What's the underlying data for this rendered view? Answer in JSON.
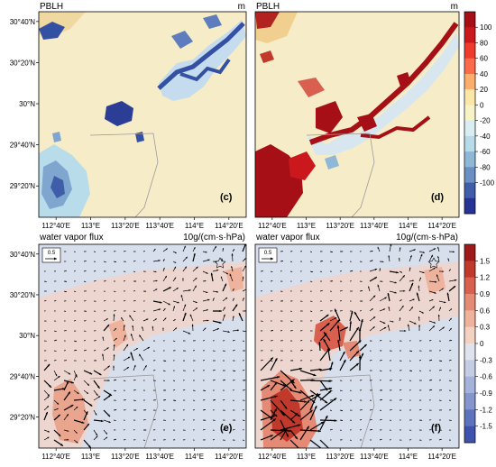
{
  "chart_data": [
    {
      "type": "heatmap",
      "panel_label": "(c)",
      "title": "PBLH",
      "unit": "m",
      "x_ticks": [
        "112°40′E",
        "113°E",
        "113°20′E",
        "113°40′E",
        "114°E",
        "114°20′E"
      ],
      "y_ticks": [
        "30°40′N",
        "30°20′N",
        "30°N",
        "29°40′N",
        "29°20′N"
      ],
      "description": "mostly 0–20 m change; blue (negative, to about -100 m) over river/lake areas and southwest corner"
    },
    {
      "type": "heatmap",
      "panel_label": "(d)",
      "title": "PBLH",
      "unit": "m",
      "x_ticks": [
        "112°40′E",
        "113°E",
        "113°20′E",
        "113°40′E",
        "114°E",
        "114°20′E"
      ],
      "y_ticks": [],
      "colorbar": {
        "ticks": [
          100,
          80,
          60,
          40,
          20,
          0,
          -20,
          -40,
          -60,
          -80,
          -100
        ],
        "colors": [
          "#a50f15",
          "#cb181d",
          "#ef3b2c",
          "#fb6a4a",
          "#fdae6b",
          "#fde7a8",
          "#f7f3c6",
          "#d9eef2",
          "#b7dbe8",
          "#8fb7d6",
          "#6a8fc2",
          "#3f5da8",
          "#253494"
        ]
      },
      "description": "strong positive (red, up to 100 m) along river corridor and southwest"
    },
    {
      "type": "heatmap",
      "panel_label": "(e)",
      "title": "water vapor flux",
      "unit": "10g/(cm·s·hPa)",
      "reference_vector": "0.5",
      "x_ticks": [
        "112°40′E",
        "113°E",
        "113°20′E",
        "113°40′E",
        "114°E",
        "114°20′E"
      ],
      "y_ticks": [
        "30°40′N",
        "30°20′N",
        "30°N",
        "29°40′N",
        "29°20′N"
      ]
    },
    {
      "type": "heatmap",
      "panel_label": "(f)",
      "title": "water vapor flux",
      "unit": "10g/(cm·s·hPa)",
      "reference_vector": "0.5",
      "x_ticks": [
        "112°40′E",
        "113°E",
        "113°20′E",
        "113°40′E",
        "114°E",
        "114°20′E"
      ],
      "y_ticks": [],
      "colorbar": {
        "ticks": [
          1.5,
          1.2,
          0.9,
          0.6,
          0.3,
          0,
          -0.3,
          -0.6,
          -0.9,
          -1.2,
          -1.5
        ],
        "colors": [
          "#9e1a1a",
          "#c0392b",
          "#d9604f",
          "#e58a74",
          "#efb29c",
          "#f4d2c1",
          "#dfe3ee",
          "#c4cde4",
          "#a5b3da",
          "#8496cc",
          "#5e73bd",
          "#3f52ad"
        ]
      }
    }
  ]
}
